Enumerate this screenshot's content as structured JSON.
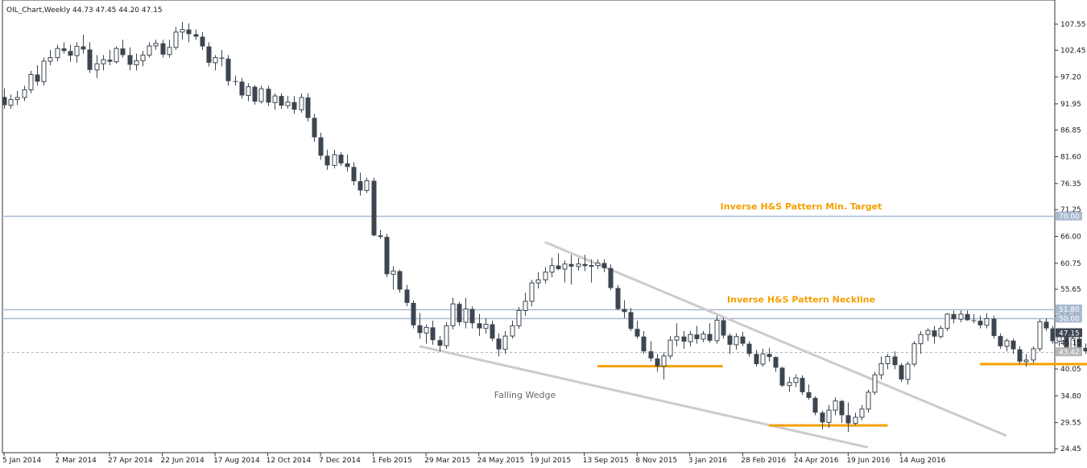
{
  "header": {
    "symbol_label": "OIL_Chart,Weekly",
    "ohlc_text": "44.73 47.45 44.20 47.15"
  },
  "colors": {
    "bear": "#3d4650",
    "bull_fill": "#ffffff",
    "bull_outline": "#3d4650",
    "hline": "#a9bad0",
    "trendline": "#cccccc",
    "support": "#f5a000",
    "annotation": "#f5a000",
    "wedge_label": "#666666",
    "price_badge": "#a9bad0",
    "last_badge": "#3d4650"
  },
  "chart_data": {
    "type": "candlestick",
    "title": "OIL_Chart,Weekly",
    "ylim": [
      24.45,
      110.2
    ],
    "y_ticks": [
      "107.55",
      "102.45",
      "97.20",
      "91.95",
      "86.85",
      "81.60",
      "76.35",
      "71.25",
      "66.00",
      "60.75",
      "55.65",
      "50.45",
      "45.15",
      "40.05",
      "34.80",
      "29.55",
      "24.45"
    ],
    "x_ticks": [
      "5 Jan 2014",
      "2 Mar 2014",
      "27 Apr 2014",
      "22 Jun 2014",
      "17 Aug 2014",
      "12 Oct 2014",
      "7 Dec 2014",
      "1 Feb 2015",
      "29 Mar 2015",
      "24 May 2015",
      "19 Jul 2015",
      "13 Sep 2015",
      "8 Nov 2015",
      "3 Jan 2016",
      "28 Feb 2016",
      "24 Apr 2016",
      "19 Jun 2016",
      "14 Aug 2016"
    ],
    "x_tick_start_week": 0,
    "x_tick_step_weeks": 8,
    "candles": [
      [
        93.3,
        95.0,
        91.0,
        91.7
      ],
      [
        91.7,
        93.8,
        91.0,
        92.8
      ],
      [
        92.8,
        94.5,
        91.7,
        93.2
      ],
      [
        93.2,
        95.5,
        92.5,
        94.7
      ],
      [
        94.7,
        98.4,
        94.0,
        97.7
      ],
      [
        97.7,
        99.5,
        95.5,
        96.3
      ],
      [
        96.3,
        101.0,
        95.5,
        100.3
      ],
      [
        100.3,
        102.5,
        99.5,
        101.0
      ],
      [
        101.0,
        103.5,
        100.3,
        102.8
      ],
      [
        102.8,
        104.0,
        101.8,
        102.3
      ],
      [
        102.3,
        103.5,
        100.2,
        101.4
      ],
      [
        101.4,
        104.0,
        100.0,
        103.2
      ],
      [
        103.2,
        105.5,
        101.8,
        102.6
      ],
      [
        102.6,
        104.0,
        98.0,
        98.6
      ],
      [
        98.6,
        101.5,
        97.0,
        99.8
      ],
      [
        99.8,
        101.5,
        98.5,
        100.6
      ],
      [
        100.6,
        102.5,
        99.5,
        100.2
      ],
      [
        100.2,
        103.2,
        99.8,
        102.8
      ],
      [
        102.8,
        104.5,
        101.0,
        101.5
      ],
      [
        101.5,
        103.0,
        98.5,
        99.6
      ],
      [
        99.6,
        101.8,
        98.5,
        100.4
      ],
      [
        100.4,
        102.3,
        99.3,
        101.5
      ],
      [
        101.5,
        104.0,
        101.0,
        103.3
      ],
      [
        103.3,
        104.5,
        102.5,
        103.8
      ],
      [
        103.8,
        104.5,
        101.0,
        101.6
      ],
      [
        101.6,
        104.5,
        101.0,
        103.0
      ],
      [
        103.0,
        107.0,
        102.5,
        106.0
      ],
      [
        106.0,
        108.0,
        104.5,
        106.5
      ],
      [
        106.5,
        107.7,
        104.0,
        105.6
      ],
      [
        105.6,
        106.5,
        104.5,
        105.1
      ],
      [
        105.1,
        106.0,
        102.5,
        103.2
      ],
      [
        103.2,
        104.0,
        99.3,
        100.0
      ],
      [
        100.0,
        101.5,
        98.5,
        101.0
      ],
      [
        101.0,
        102.5,
        99.3,
        100.8
      ],
      [
        100.8,
        101.5,
        95.5,
        96.4
      ],
      [
        96.4,
        97.5,
        95.5,
        96.3
      ],
      [
        96.3,
        97.0,
        93.0,
        93.6
      ],
      [
        93.6,
        96.0,
        92.5,
        95.3
      ],
      [
        95.3,
        95.6,
        91.8,
        92.4
      ],
      [
        92.4,
        95.5,
        92.0,
        94.9
      ],
      [
        94.9,
        95.5,
        91.5,
        92.2
      ],
      [
        92.2,
        94.0,
        90.8,
        93.5
      ],
      [
        93.5,
        94.0,
        91.0,
        91.6
      ],
      [
        91.6,
        93.5,
        91.0,
        92.3
      ],
      [
        92.3,
        93.5,
        90.0,
        90.8
      ],
      [
        90.8,
        94.0,
        90.2,
        93.2
      ],
      [
        93.2,
        94.0,
        88.5,
        89.2
      ],
      [
        89.2,
        90.0,
        84.5,
        85.4
      ],
      [
        85.4,
        86.3,
        81.0,
        81.8
      ],
      [
        81.8,
        83.0,
        79.0,
        79.9
      ],
      [
        79.9,
        83.0,
        79.3,
        82.0
      ],
      [
        82.0,
        82.5,
        79.8,
        80.3
      ],
      [
        80.3,
        82.0,
        78.7,
        79.6
      ],
      [
        79.6,
        80.5,
        76.0,
        76.8
      ],
      [
        76.8,
        78.5,
        74.0,
        75.0
      ],
      [
        75.0,
        77.5,
        74.5,
        76.9
      ],
      [
        76.9,
        77.5,
        66.0,
        66.2
      ],
      [
        66.2,
        67.3,
        65.5,
        65.9
      ],
      [
        65.9,
        66.5,
        58.0,
        58.6
      ],
      [
        58.6,
        60.2,
        55.6,
        59.2
      ],
      [
        59.2,
        59.5,
        55.0,
        55.6
      ],
      [
        55.6,
        56.5,
        52.3,
        53.0
      ],
      [
        53.0,
        53.5,
        48.0,
        48.6
      ],
      [
        48.6,
        51.0,
        46.0,
        47.1
      ],
      [
        47.1,
        48.8,
        45.0,
        48.2
      ],
      [
        48.2,
        49.5,
        44.8,
        45.7
      ],
      [
        45.7,
        46.5,
        43.5,
        44.6
      ],
      [
        44.6,
        49.2,
        44.0,
        48.5
      ],
      [
        48.5,
        54.0,
        47.8,
        52.8
      ],
      [
        52.8,
        53.2,
        48.5,
        49.2
      ],
      [
        49.2,
        54.0,
        48.0,
        51.8
      ],
      [
        51.8,
        52.3,
        48.0,
        49.0
      ],
      [
        49.0,
        50.8,
        46.5,
        48.0
      ],
      [
        48.0,
        50.0,
        47.0,
        48.8
      ],
      [
        48.8,
        49.5,
        45.5,
        46.0
      ],
      [
        46.0,
        47.0,
        42.5,
        43.9
      ],
      [
        43.9,
        47.5,
        43.0,
        46.5
      ],
      [
        46.5,
        49.5,
        46.0,
        48.5
      ],
      [
        48.5,
        52.2,
        47.9,
        51.5
      ],
      [
        51.5,
        55.0,
        50.5,
        53.3
      ],
      [
        53.3,
        57.5,
        52.3,
        56.9
      ],
      [
        56.9,
        59.0,
        55.8,
        57.5
      ],
      [
        57.5,
        60.0,
        56.8,
        59.0
      ],
      [
        59.0,
        61.8,
        58.0,
        60.3
      ],
      [
        60.3,
        62.7,
        59.4,
        59.6
      ],
      [
        59.6,
        61.3,
        57.0,
        60.6
      ],
      [
        60.6,
        62.4,
        56.6,
        60.1
      ],
      [
        60.1,
        61.8,
        59.3,
        60.6
      ],
      [
        60.6,
        62.4,
        59.2,
        60.2
      ],
      [
        60.2,
        61.5,
        57.0,
        60.3
      ],
      [
        60.3,
        61.5,
        59.6,
        60.8
      ],
      [
        60.8,
        61.5,
        59.0,
        59.8
      ],
      [
        59.8,
        60.5,
        55.5,
        55.9
      ],
      [
        55.9,
        56.5,
        51.5,
        51.8
      ],
      [
        51.8,
        53.5,
        50.0,
        51.2
      ],
      [
        51.2,
        52.0,
        47.5,
        47.9
      ],
      [
        47.9,
        49.5,
        46.0,
        46.4
      ],
      [
        46.4,
        47.5,
        43.0,
        43.5
      ],
      [
        43.5,
        45.5,
        41.5,
        42.1
      ],
      [
        42.1,
        43.0,
        39.5,
        40.6
      ],
      [
        40.6,
        43.3,
        38.0,
        42.6
      ],
      [
        42.6,
        46.5,
        42.0,
        45.7
      ],
      [
        45.7,
        49.0,
        44.5,
        46.4
      ],
      [
        46.4,
        47.5,
        44.0,
        45.4
      ],
      [
        45.4,
        47.5,
        44.5,
        46.8
      ],
      [
        46.8,
        48.5,
        45.0,
        45.9
      ],
      [
        45.9,
        47.5,
        45.3,
        46.9
      ],
      [
        46.9,
        49.0,
        45.2,
        45.6
      ],
      [
        45.6,
        50.5,
        45.0,
        49.6
      ],
      [
        49.6,
        50.0,
        46.0,
        46.6
      ],
      [
        46.6,
        47.0,
        43.0,
        44.8
      ],
      [
        44.8,
        47.0,
        43.8,
        46.4
      ],
      [
        46.4,
        47.3,
        44.5,
        45.0
      ],
      [
        45.0,
        45.5,
        42.5,
        43.0
      ],
      [
        43.0,
        43.8,
        40.5,
        41.0
      ],
      [
        41.0,
        44.0,
        40.5,
        43.0
      ],
      [
        43.0,
        44.2,
        41.5,
        42.4
      ],
      [
        42.4,
        42.5,
        39.5,
        40.3
      ],
      [
        40.3,
        40.5,
        36.5,
        36.8
      ],
      [
        36.8,
        38.5,
        35.5,
        37.4
      ],
      [
        37.4,
        39.0,
        36.5,
        38.3
      ],
      [
        38.3,
        38.8,
        35.0,
        35.5
      ],
      [
        35.5,
        37.0,
        34.0,
        34.4
      ],
      [
        34.4,
        34.7,
        31.0,
        31.5
      ],
      [
        31.5,
        31.9,
        28.2,
        29.6
      ],
      [
        29.6,
        33.0,
        28.5,
        32.0
      ],
      [
        32.0,
        34.5,
        31.0,
        33.8
      ],
      [
        33.8,
        34.0,
        29.5,
        31.0
      ],
      [
        31.0,
        33.5,
        27.7,
        29.4
      ],
      [
        29.4,
        31.5,
        29.0,
        30.6
      ],
      [
        30.6,
        33.0,
        30.0,
        32.2
      ],
      [
        32.2,
        36.0,
        31.5,
        35.5
      ],
      [
        35.5,
        39.5,
        35.0,
        38.9
      ],
      [
        38.9,
        42.5,
        38.0,
        41.1
      ],
      [
        41.1,
        43.0,
        40.0,
        42.5
      ],
      [
        42.5,
        43.5,
        40.0,
        40.8
      ],
      [
        40.8,
        41.2,
        37.5,
        38.0
      ],
      [
        38.0,
        41.5,
        37.0,
        41.0
      ],
      [
        41.0,
        45.5,
        40.5,
        45.0
      ],
      [
        45.0,
        47.5,
        43.0,
        46.8
      ],
      [
        46.8,
        48.0,
        45.5,
        47.6
      ],
      [
        47.6,
        48.5,
        45.0,
        46.4
      ],
      [
        46.4,
        48.5,
        46.0,
        48.0
      ],
      [
        48.0,
        51.0,
        47.5,
        50.8
      ],
      [
        50.8,
        51.5,
        49.0,
        49.8
      ],
      [
        49.8,
        51.5,
        49.2,
        50.8
      ],
      [
        50.8,
        51.5,
        49.5,
        49.6
      ],
      [
        49.6,
        50.8,
        49.0,
        49.5
      ],
      [
        49.5,
        50.5,
        48.0,
        48.6
      ],
      [
        48.6,
        51.0,
        48.0,
        49.9
      ],
      [
        49.9,
        50.5,
        46.0,
        46.5
      ],
      [
        46.5,
        47.0,
        44.0,
        44.5
      ],
      [
        44.5,
        46.0,
        43.5,
        45.6
      ],
      [
        45.6,
        46.0,
        43.0,
        43.9
      ],
      [
        43.9,
        44.5,
        41.0,
        41.5
      ],
      [
        41.5,
        43.0,
        40.5,
        41.8
      ],
      [
        41.8,
        44.5,
        41.2,
        44.0
      ],
      [
        44.0,
        49.8,
        43.5,
        49.3
      ],
      [
        49.3,
        50.0,
        47.5,
        48.0
      ],
      [
        48.0,
        48.5,
        45.0,
        45.5
      ],
      [
        45.5,
        47.5,
        44.5,
        46.9
      ],
      [
        46.9,
        47.5,
        43.5,
        44.0
      ],
      [
        44.0,
        46.5,
        43.2,
        46.0
      ],
      [
        46.0,
        47.0,
        43.5,
        44.2
      ],
      [
        44.2,
        45.0,
        43.0,
        43.5
      ],
      [
        43.5,
        45.8,
        43.0,
        44.7
      ],
      [
        44.7,
        47.45,
        44.2,
        47.15
      ]
    ],
    "horizontal_lines": [
      {
        "price": 70.0,
        "label": "70.00",
        "annotation": "Inverse H&S Pattern Min. Target"
      },
      {
        "price": 51.8,
        "label": "51.80",
        "annotation": "Inverse H&S Pattern Neckline"
      },
      {
        "price": 50.0,
        "label": "50.00",
        "annotation": ""
      }
    ],
    "bid_line": {
      "price": 43.42,
      "label": "43.42"
    },
    "last_price": {
      "price": 47.15,
      "label": "47.15"
    },
    "trendlines": [
      {
        "from": {
          "week": 82,
          "price": 64.9
        },
        "to": {
          "week": 152,
          "price": 27.0
        }
      },
      {
        "from": {
          "week": 63,
          "price": 44.5
        },
        "to": {
          "week": 131,
          "price": 24.7
        }
      }
    ],
    "support_lines": [
      {
        "from_week": 90,
        "to_week": 109,
        "price": 40.6
      },
      {
        "from_week": 116,
        "to_week": 134,
        "price": 29.0
      },
      {
        "from_week": 148,
        "to_week": 166,
        "price": 41.0
      }
    ],
    "pattern_labels": [
      {
        "text": "Falling Wedge",
        "week": 79,
        "price": 35.0
      }
    ]
  }
}
